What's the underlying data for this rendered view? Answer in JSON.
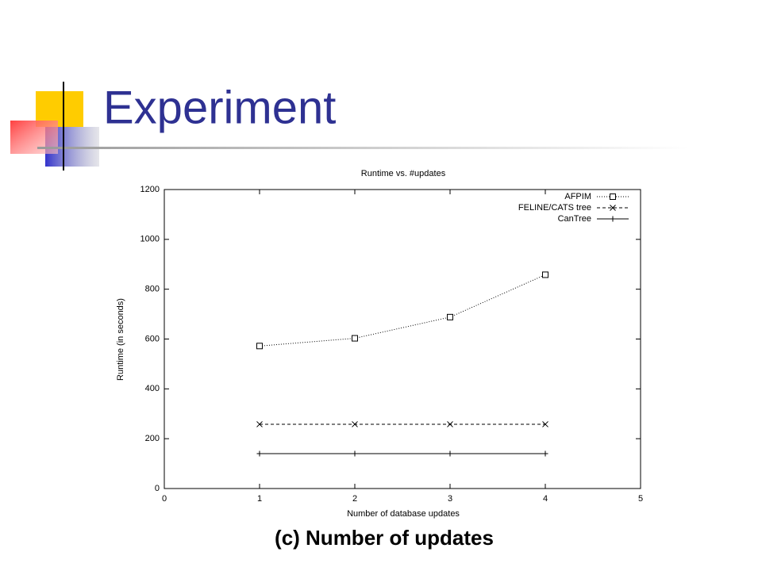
{
  "slide_title": "Experiment",
  "caption": "(c) Number of updates",
  "chart_data": {
    "type": "line",
    "title": "Runtime vs. #updates",
    "x_label": "Number of database updates",
    "y_label": "Runtime (in seconds)",
    "x": [
      1,
      2,
      3,
      4
    ],
    "series": [
      {
        "name": "AFPIM",
        "color": "#000000",
        "marker": "square",
        "linestyle": "dotted",
        "values": [
          572,
          603,
          688,
          858
        ]
      },
      {
        "name": "FELINE/CATS tree",
        "color": "#000000",
        "marker": "x",
        "linestyle": "dashed",
        "values": [
          258,
          258,
          258,
          258
        ]
      },
      {
        "name": "CanTree",
        "color": "#000000",
        "marker": "plus",
        "linestyle": "solid",
        "values": [
          140,
          140,
          140,
          140
        ]
      }
    ],
    "xlim": [
      0,
      5
    ],
    "xticks": [
      0,
      1,
      2,
      3,
      4,
      5
    ],
    "ylim": [
      0,
      1200
    ],
    "yticks": [
      0,
      200,
      400,
      600,
      800,
      1000,
      1200
    ],
    "legend": "top-right",
    "grid": false
  }
}
